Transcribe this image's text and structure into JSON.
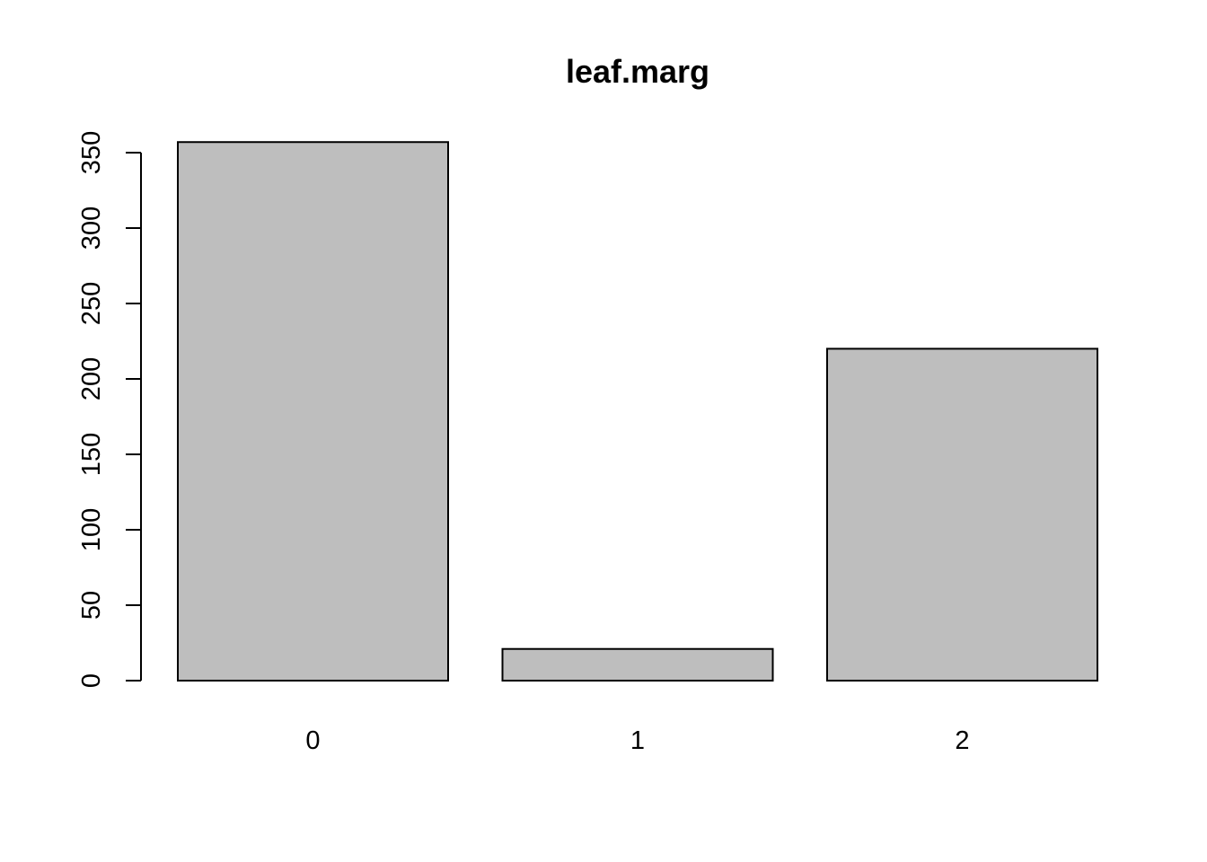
{
  "chart_data": {
    "type": "bar",
    "title": "leaf.marg",
    "xlabel": "",
    "ylabel": "",
    "categories": [
      "0",
      "1",
      "2"
    ],
    "values": [
      357,
      21,
      220
    ],
    "ylim": [
      0,
      350
    ],
    "yticks": [
      0,
      50,
      100,
      150,
      200,
      250,
      300,
      350
    ],
    "grid": false,
    "legend": "none",
    "bar_color": "#bebebe",
    "bar_border_color": "#000000"
  }
}
